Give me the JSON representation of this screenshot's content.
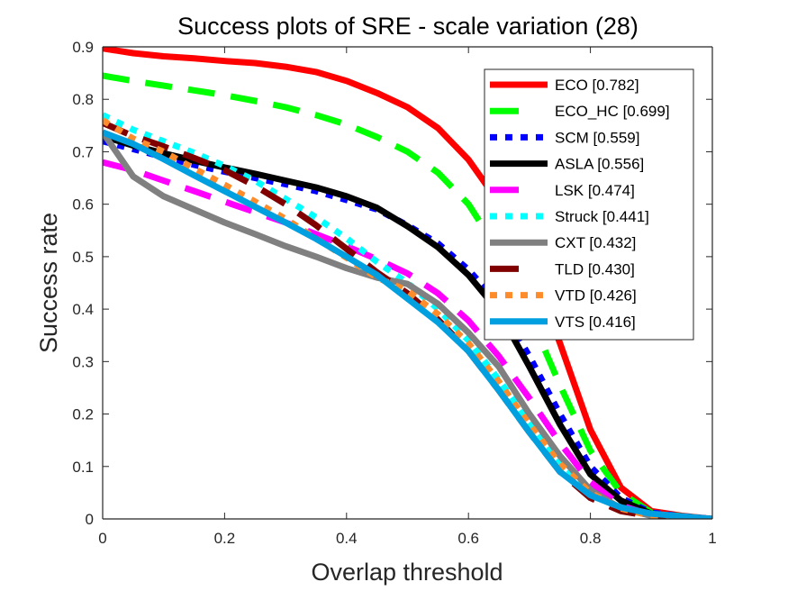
{
  "chart_data": {
    "type": "line",
    "title": "Success plots of SRE - scale variation (28)",
    "xlabel": "Overlap threshold",
    "ylabel": "Success rate",
    "xlim": [
      0,
      1
    ],
    "ylim": [
      0,
      0.9
    ],
    "grid": false,
    "legend_position": "top-right",
    "xticks": [
      0,
      0.2,
      0.4,
      0.6,
      0.8,
      1
    ],
    "xtick_labels": [
      "0",
      "0.2",
      "0.4",
      "0.6",
      "0.8",
      "1"
    ],
    "yticks": [
      0,
      0.1,
      0.2,
      0.3,
      0.4,
      0.5,
      0.6,
      0.7,
      0.8,
      0.9
    ],
    "ytick_labels": [
      "0",
      "0.1",
      "0.2",
      "0.3",
      "0.4",
      "0.5",
      "0.6",
      "0.7",
      "0.8",
      "0.9"
    ],
    "x": [
      0,
      0.05,
      0.1,
      0.15,
      0.2,
      0.25,
      0.3,
      0.35,
      0.4,
      0.45,
      0.5,
      0.55,
      0.6,
      0.65,
      0.7,
      0.75,
      0.8,
      0.85,
      0.9,
      0.95,
      1
    ],
    "series": [
      {
        "name": "ECO",
        "score": "0.782",
        "legend": "ECO [0.782]",
        "color": "#ff0000",
        "style": "solid",
        "values": [
          0.897,
          0.888,
          0.882,
          0.878,
          0.873,
          0.869,
          0.862,
          0.852,
          0.835,
          0.812,
          0.785,
          0.745,
          0.685,
          0.603,
          0.49,
          0.335,
          0.17,
          0.06,
          0.015,
          0.006,
          0.0
        ]
      },
      {
        "name": "ECO_HC",
        "score": "0.699",
        "legend": "ECO_HC [0.699]",
        "color": "#00ff00",
        "style": "dashed",
        "values": [
          0.845,
          0.835,
          0.826,
          0.817,
          0.808,
          0.797,
          0.785,
          0.77,
          0.752,
          0.728,
          0.7,
          0.66,
          0.6,
          0.51,
          0.39,
          0.255,
          0.13,
          0.05,
          0.012,
          0.005,
          0.0
        ]
      },
      {
        "name": "SCM",
        "score": "0.559",
        "legend": "SCM [0.559]",
        "color": "#0000ff",
        "style": "dotted",
        "values": [
          0.72,
          0.705,
          0.69,
          0.675,
          0.662,
          0.65,
          0.638,
          0.625,
          0.608,
          0.59,
          0.56,
          0.525,
          0.475,
          0.41,
          0.31,
          0.2,
          0.1,
          0.04,
          0.012,
          0.005,
          0.0
        ]
      },
      {
        "name": "ASLA",
        "score": "0.556",
        "legend": "ASLA [0.556]",
        "color": "#000000",
        "style": "solid",
        "values": [
          0.73,
          0.712,
          0.697,
          0.683,
          0.67,
          0.658,
          0.645,
          0.632,
          0.615,
          0.593,
          0.558,
          0.518,
          0.465,
          0.395,
          0.29,
          0.18,
          0.085,
          0.035,
          0.01,
          0.004,
          0.0
        ]
      },
      {
        "name": "LSK",
        "score": "0.474",
        "legend": "LSK [0.474]",
        "color": "#ff00ff",
        "style": "dashed",
        "values": [
          0.68,
          0.665,
          0.645,
          0.625,
          0.605,
          0.585,
          0.565,
          0.543,
          0.52,
          0.495,
          0.468,
          0.43,
          0.378,
          0.31,
          0.23,
          0.145,
          0.07,
          0.025,
          0.008,
          0.003,
          0.0
        ]
      },
      {
        "name": "Struck",
        "score": "0.441",
        "legend": "Struck [0.441]",
        "color": "#00ffff",
        "style": "dotted",
        "values": [
          0.77,
          0.742,
          0.72,
          0.698,
          0.673,
          0.645,
          0.61,
          0.575,
          0.535,
          0.49,
          0.45,
          0.4,
          0.34,
          0.265,
          0.185,
          0.11,
          0.05,
          0.02,
          0.006,
          0.002,
          0.0
        ]
      },
      {
        "name": "CXT",
        "score": "0.432",
        "legend": "CXT [0.432]",
        "color": "#808080",
        "style": "solid",
        "values": [
          0.737,
          0.653,
          0.615,
          0.59,
          0.565,
          0.543,
          0.52,
          0.5,
          0.478,
          0.46,
          0.448,
          0.41,
          0.355,
          0.29,
          0.2,
          0.12,
          0.055,
          0.02,
          0.006,
          0.002,
          0.0
        ]
      },
      {
        "name": "TLD",
        "score": "0.430",
        "legend": "TLD [0.430]",
        "color": "#800000",
        "style": "dashed",
        "values": [
          0.755,
          0.73,
          0.71,
          0.688,
          0.665,
          0.635,
          0.6,
          0.56,
          0.515,
          0.47,
          0.43,
          0.38,
          0.32,
          0.245,
          0.165,
          0.09,
          0.04,
          0.015,
          0.005,
          0.002,
          0.0
        ]
      },
      {
        "name": "VTD",
        "score": "0.426",
        "legend": "VTD [0.426]",
        "color": "#ff8c2a",
        "style": "dotted",
        "values": [
          0.76,
          0.725,
          0.7,
          0.668,
          0.637,
          0.605,
          0.572,
          0.535,
          0.498,
          0.46,
          0.435,
          0.39,
          0.335,
          0.262,
          0.18,
          0.105,
          0.05,
          0.02,
          0.006,
          0.002,
          0.0
        ]
      },
      {
        "name": "VTS",
        "score": "0.416",
        "legend": "VTS [0.416]",
        "color": "#00a0e0",
        "style": "solid",
        "values": [
          0.737,
          0.715,
          0.686,
          0.655,
          0.625,
          0.595,
          0.565,
          0.534,
          0.5,
          0.465,
          0.42,
          0.375,
          0.32,
          0.245,
          0.165,
          0.09,
          0.045,
          0.022,
          0.01,
          0.005,
          0.0
        ]
      }
    ]
  }
}
